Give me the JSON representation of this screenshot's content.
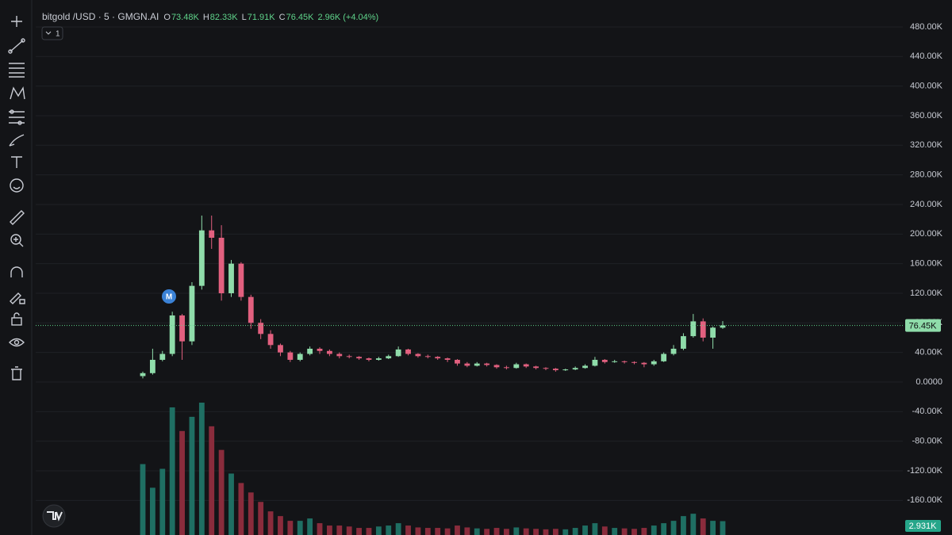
{
  "chart_data": {
    "type": "candlestick",
    "title": "bitgold /USD · 5 · GMGN.AI",
    "legend": [
      {
        "key": "O",
        "value": "73.48K"
      },
      {
        "key": "H",
        "value": "82.33K"
      },
      {
        "key": "L",
        "value": "71.91K"
      },
      {
        "key": "C",
        "value": "76.45K"
      }
    ],
    "change": "2.96K (+4.04%)",
    "interval_badge": "1",
    "marker_label": "M",
    "last_price_label": "76.45K",
    "last_volume_label": "2.931K",
    "up_color": "#8fdcaa",
    "down_color": "#e2607f",
    "volume_up_color": "#1f6f63",
    "volume_down_color": "#8a2c3c",
    "grid": true,
    "ylim": [
      -206.8,
      516.4
    ],
    "yticks": [
      {
        "value": 480,
        "label": "480.00K"
      },
      {
        "value": 440,
        "label": "440.00K"
      },
      {
        "value": 400,
        "label": "400.00K"
      },
      {
        "value": 360,
        "label": "360.00K"
      },
      {
        "value": 320,
        "label": "320.00K"
      },
      {
        "value": 280,
        "label": "280.00K"
      },
      {
        "value": 240,
        "label": "240.00K"
      },
      {
        "value": 200,
        "label": "200.00K"
      },
      {
        "value": 160,
        "label": "160.00K"
      },
      {
        "value": 120,
        "label": "120.00K"
      },
      {
        "value": 80,
        "label": "80.00K"
      },
      {
        "value": 40,
        "label": "40.00K"
      },
      {
        "value": 0,
        "label": "0.0000"
      },
      {
        "value": -40,
        "label": "-40.00K"
      },
      {
        "value": -80,
        "label": "-80.00K"
      },
      {
        "value": -120,
        "label": "-120.00K"
      },
      {
        "value": -160,
        "label": "-160.00K"
      }
    ],
    "candles": [
      [
        8,
        14,
        5,
        12
      ],
      [
        12,
        45,
        10,
        30
      ],
      [
        30,
        42,
        28,
        38
      ],
      [
        38,
        95,
        35,
        90
      ],
      [
        90,
        92,
        30,
        55
      ],
      [
        55,
        135,
        50,
        130
      ],
      [
        130,
        225,
        125,
        205
      ],
      [
        205,
        225,
        180,
        195
      ],
      [
        195,
        212,
        110,
        120
      ],
      [
        120,
        165,
        115,
        160
      ],
      [
        160,
        162,
        110,
        115
      ],
      [
        115,
        118,
        72,
        80
      ],
      [
        80,
        85,
        58,
        65
      ],
      [
        65,
        70,
        45,
        50
      ],
      [
        50,
        52,
        35,
        40
      ],
      [
        40,
        42,
        27,
        30
      ],
      [
        30,
        40,
        28,
        38
      ],
      [
        38,
        48,
        36,
        45
      ],
      [
        45,
        47,
        38,
        42
      ],
      [
        42,
        44,
        35,
        38
      ],
      [
        38,
        40,
        32,
        35
      ],
      [
        35,
        37,
        32,
        34
      ],
      [
        34,
        35,
        30,
        32
      ],
      [
        32,
        33,
        28,
        30
      ],
      [
        30,
        34,
        29,
        32
      ],
      [
        32,
        37,
        31,
        35
      ],
      [
        35,
        48,
        34,
        44
      ],
      [
        44,
        45,
        36,
        38
      ],
      [
        38,
        39,
        33,
        35
      ],
      [
        35,
        37,
        32,
        34
      ],
      [
        34,
        35,
        30,
        32
      ],
      [
        32,
        33,
        27,
        30
      ],
      [
        30,
        31,
        22,
        25
      ],
      [
        25,
        27,
        20,
        22
      ],
      [
        22,
        27,
        21,
        25
      ],
      [
        25,
        26,
        21,
        23
      ],
      [
        23,
        24,
        18,
        20
      ],
      [
        20,
        22,
        17,
        19
      ],
      [
        19,
        26,
        18,
        24
      ],
      [
        24,
        25,
        19,
        21
      ],
      [
        21,
        22,
        17,
        19
      ],
      [
        19,
        20,
        16,
        18
      ],
      [
        18,
        19,
        14,
        16
      ],
      [
        16,
        18,
        15,
        17
      ],
      [
        17,
        21,
        16,
        19
      ],
      [
        19,
        24,
        18,
        22
      ],
      [
        22,
        34,
        21,
        30
      ],
      [
        30,
        31,
        25,
        27
      ],
      [
        27,
        30,
        26,
        28
      ],
      [
        28,
        29,
        25,
        27
      ],
      [
        27,
        28,
        24,
        26
      ],
      [
        26,
        27,
        20,
        24
      ],
      [
        24,
        30,
        22,
        28
      ],
      [
        28,
        40,
        27,
        38
      ],
      [
        38,
        50,
        36,
        45
      ],
      [
        45,
        66,
        43,
        62
      ],
      [
        62,
        92,
        60,
        82
      ],
      [
        82,
        86,
        55,
        60
      ],
      [
        60,
        75,
        45,
        73.48
      ],
      [
        73.48,
        82.33,
        71.91,
        76.45
      ]
    ],
    "volumes": [
      15,
      10,
      14,
      27,
      22,
      25,
      28,
      23,
      18,
      13,
      11,
      9,
      7,
      5,
      4,
      3,
      3,
      3.5,
      2.5,
      2,
      2,
      1.8,
      1.5,
      1.5,
      1.8,
      2,
      2.5,
      2,
      1.6,
      1.5,
      1.5,
      1.4,
      2,
      1.6,
      1.4,
      1.3,
      1.5,
      1.3,
      1.6,
      1.4,
      1.3,
      1.2,
      1.3,
      1.2,
      1.5,
      2,
      2.5,
      1.8,
      1.5,
      1.4,
      1.3,
      1.5,
      2,
      2.5,
      3,
      4,
      4.5,
      3.5,
      3,
      2.931
    ]
  }
}
